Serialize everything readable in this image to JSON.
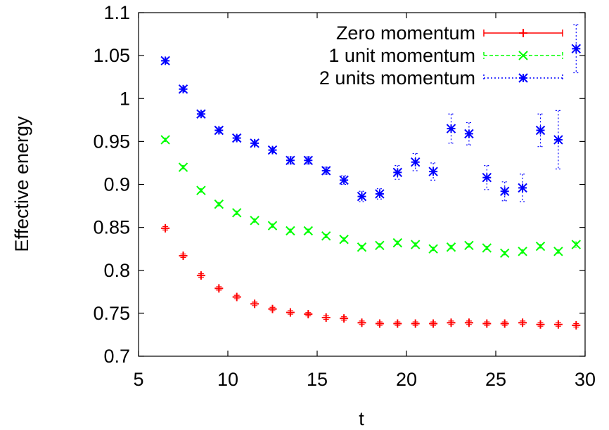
{
  "chart_data": {
    "type": "scatter",
    "xlabel": "t",
    "ylabel": "Effective energy",
    "xlim": [
      5,
      30
    ],
    "ylim": [
      0.7,
      1.1
    ],
    "xticks": [
      5,
      10,
      15,
      20,
      25,
      30
    ],
    "yticks": [
      0.7,
      0.75,
      0.8,
      0.85,
      0.9,
      0.95,
      1,
      1.05,
      1.1
    ],
    "xtick_labels": [
      "5",
      "10",
      "15",
      "20",
      "25",
      "30"
    ],
    "ytick_labels": [
      "0.7",
      "0.75",
      "0.8",
      "0.85",
      "0.9",
      "0.95",
      "1",
      "1.05",
      "1.1"
    ],
    "grid": false,
    "legend_position": "top-right",
    "series": [
      {
        "name": "Zero momentum",
        "color": "#ff0000",
        "marker": "plus",
        "line_style": "solid",
        "x": [
          6.5,
          7.5,
          8.5,
          9.5,
          10.5,
          11.5,
          12.5,
          13.5,
          14.5,
          15.5,
          16.5,
          17.5,
          18.5,
          19.5,
          20.5,
          21.5,
          22.5,
          23.5,
          24.5,
          25.5,
          26.5,
          27.5,
          28.5,
          29.5
        ],
        "y": [
          0.849,
          0.817,
          0.794,
          0.779,
          0.769,
          0.761,
          0.755,
          0.751,
          0.749,
          0.745,
          0.744,
          0.739,
          0.738,
          0.738,
          0.738,
          0.738,
          0.739,
          0.739,
          0.738,
          0.738,
          0.739,
          0.737,
          0.737,
          0.736
        ],
        "err": [
          0.002,
          0.002,
          0.002,
          0.002,
          0.002,
          0.002,
          0.002,
          0.002,
          0.002,
          0.002,
          0.002,
          0.002,
          0.002,
          0.002,
          0.002,
          0.002,
          0.002,
          0.002,
          0.002,
          0.002,
          0.002,
          0.002,
          0.002,
          0.002
        ]
      },
      {
        "name": "1 unit momentum",
        "color": "#00ff00",
        "marker": "x",
        "line_style": "dashed",
        "x": [
          6.5,
          7.5,
          8.5,
          9.5,
          10.5,
          11.5,
          12.5,
          13.5,
          14.5,
          15.5,
          16.5,
          17.5,
          18.5,
          19.5,
          20.5,
          21.5,
          22.5,
          23.5,
          24.5,
          25.5,
          26.5,
          27.5,
          28.5,
          29.5
        ],
        "y": [
          0.952,
          0.92,
          0.893,
          0.877,
          0.867,
          0.858,
          0.852,
          0.846,
          0.846,
          0.84,
          0.836,
          0.827,
          0.829,
          0.832,
          0.83,
          0.825,
          0.827,
          0.829,
          0.826,
          0.82,
          0.822,
          0.828,
          0.822,
          0.83
        ],
        "err": [
          0.002,
          0.002,
          0.002,
          0.002,
          0.002,
          0.002,
          0.002,
          0.002,
          0.002,
          0.002,
          0.002,
          0.002,
          0.002,
          0.002,
          0.002,
          0.002,
          0.002,
          0.002,
          0.002,
          0.002,
          0.002,
          0.002,
          0.002,
          0.003
        ]
      },
      {
        "name": "2 units momentum",
        "color": "#0000ff",
        "marker": "star",
        "line_style": "dotted",
        "x": [
          6.5,
          7.5,
          8.5,
          9.5,
          10.5,
          11.5,
          12.5,
          13.5,
          14.5,
          15.5,
          16.5,
          17.5,
          18.5,
          19.5,
          20.5,
          21.5,
          22.5,
          23.5,
          24.5,
          25.5,
          26.5,
          27.5,
          28.5,
          29.5
        ],
        "y": [
          1.044,
          1.011,
          0.982,
          0.963,
          0.954,
          0.948,
          0.94,
          0.928,
          0.928,
          0.916,
          0.905,
          0.886,
          0.889,
          0.914,
          0.926,
          0.915,
          0.965,
          0.959,
          0.908,
          0.892,
          0.896,
          0.963,
          0.952,
          1.058
        ],
        "err": [
          0.003,
          0.003,
          0.003,
          0.003,
          0.003,
          0.003,
          0.003,
          0.004,
          0.004,
          0.004,
          0.005,
          0.006,
          0.006,
          0.008,
          0.01,
          0.01,
          0.017,
          0.013,
          0.014,
          0.011,
          0.016,
          0.019,
          0.034,
          0.028
        ]
      }
    ]
  }
}
